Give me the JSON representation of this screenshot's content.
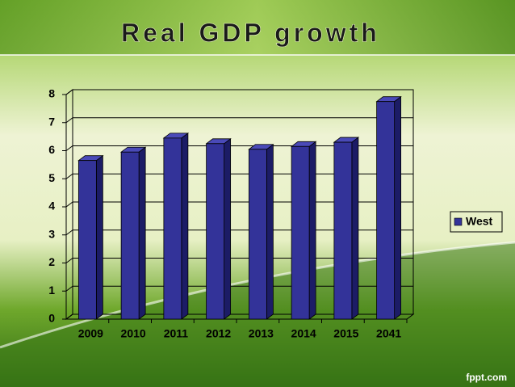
{
  "chart_data": {
    "type": "bar3d",
    "title": "Real GDP growth",
    "categories": [
      "2009",
      "2010",
      "2011",
      "2012",
      "2013",
      "2014",
      "2015",
      "2041"
    ],
    "series": [
      {
        "name": "West",
        "color": "#333399",
        "values": [
          5.65,
          5.95,
          6.45,
          6.25,
          6.05,
          6.15,
          6.3,
          7.75
        ]
      }
    ],
    "ylim": [
      0,
      8
    ],
    "yticks": [
      0,
      1,
      2,
      3,
      4,
      5,
      6,
      7,
      8
    ],
    "grid": true,
    "legend": "right"
  },
  "watermark": "fppt.com"
}
